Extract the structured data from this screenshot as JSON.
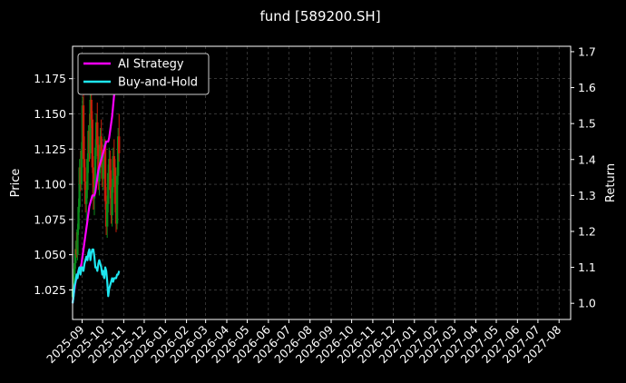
{
  "chart_data": {
    "type": "line",
    "title": "fund [589200.SH]",
    "xlabel": "",
    "ylabel_left": "Price",
    "ylabel_right": "Return",
    "x_tick_labels": [
      "2025-09",
      "2025-10",
      "2025-11",
      "2025-12",
      "2026-01",
      "2026-02",
      "2026-03",
      "2026-04",
      "2026-05",
      "2026-06",
      "2026-07",
      "2026-08",
      "2026-09",
      "2026-10",
      "2026-11",
      "2026-12",
      "2027-01",
      "2027-02",
      "2027-03",
      "2027-04",
      "2027-05",
      "2027-06",
      "2027-07",
      "2027-08"
    ],
    "xlim": [
      "2025-08-18",
      "2027-08-18"
    ],
    "y_left": {
      "lim": [
        1.004,
        1.198
      ],
      "ticks": [
        1.025,
        1.05,
        1.075,
        1.1,
        1.125,
        1.15,
        1.175
      ],
      "tick_labels": [
        "1.025",
        "1.050",
        "1.075",
        "1.100",
        "1.125",
        "1.150",
        "1.175"
      ]
    },
    "y_right": {
      "lim": [
        0.955,
        1.715
      ],
      "ticks": [
        1.0,
        1.1,
        1.2,
        1.3,
        1.4,
        1.5,
        1.6,
        1.7
      ],
      "tick_labels": [
        "1.0",
        "1.1",
        "1.2",
        "1.3",
        "1.4",
        "1.5",
        "1.6",
        "1.7"
      ]
    },
    "grid": true,
    "legend_position": "top-left",
    "colors": {
      "background": "#000000",
      "ai": "#ff00ff",
      "bh": "#1ee6f0",
      "up": "#0a8a1a",
      "down": "#c81e0a",
      "grid": "#555555",
      "axis": "#ffffff"
    },
    "candles": {
      "start_date": "2025-08-18",
      "step_days": 1.45,
      "ohlc": [
        [
          1.02,
          1.028,
          1.018,
          1.026
        ],
        [
          1.026,
          1.04,
          1.022,
          1.036
        ],
        [
          1.036,
          1.05,
          1.03,
          1.044
        ],
        [
          1.044,
          1.06,
          1.04,
          1.054
        ],
        [
          1.054,
          1.066,
          1.048,
          1.05
        ],
        [
          1.05,
          1.072,
          1.046,
          1.068
        ],
        [
          1.068,
          1.09,
          1.064,
          1.084
        ],
        [
          1.084,
          1.118,
          1.08,
          1.112
        ],
        [
          1.112,
          1.124,
          1.095,
          1.1
        ],
        [
          1.1,
          1.13,
          1.096,
          1.124
        ],
        [
          1.124,
          1.162,
          1.118,
          1.156
        ],
        [
          1.156,
          1.166,
          1.112,
          1.118
        ],
        [
          1.118,
          1.134,
          1.096,
          1.102
        ],
        [
          1.102,
          1.112,
          1.08,
          1.086
        ],
        [
          1.086,
          1.102,
          1.074,
          1.096
        ],
        [
          1.096,
          1.122,
          1.09,
          1.118
        ],
        [
          1.118,
          1.142,
          1.108,
          1.138
        ],
        [
          1.138,
          1.15,
          1.116,
          1.122
        ],
        [
          1.122,
          1.168,
          1.118,
          1.16
        ],
        [
          1.16,
          1.176,
          1.14,
          1.146
        ],
        [
          1.146,
          1.152,
          1.108,
          1.112
        ],
        [
          1.112,
          1.12,
          1.082,
          1.09
        ],
        [
          1.09,
          1.104,
          1.078,
          1.098
        ],
        [
          1.098,
          1.132,
          1.094,
          1.126
        ],
        [
          1.126,
          1.15,
          1.118,
          1.144
        ],
        [
          1.144,
          1.158,
          1.12,
          1.128
        ],
        [
          1.128,
          1.134,
          1.096,
          1.102
        ],
        [
          1.102,
          1.118,
          1.092,
          1.112
        ],
        [
          1.112,
          1.14,
          1.108,
          1.134
        ],
        [
          1.134,
          1.146,
          1.12,
          1.124
        ],
        [
          1.124,
          1.13,
          1.098,
          1.104
        ],
        [
          1.104,
          1.12,
          1.096,
          1.116
        ],
        [
          1.116,
          1.134,
          1.108,
          1.128
        ],
        [
          1.128,
          1.132,
          1.082,
          1.088
        ],
        [
          1.088,
          1.098,
          1.064,
          1.07
        ],
        [
          1.07,
          1.092,
          1.062,
          1.086
        ],
        [
          1.086,
          1.114,
          1.08,
          1.108
        ],
        [
          1.108,
          1.126,
          1.1,
          1.118
        ],
        [
          1.118,
          1.124,
          1.09,
          1.096
        ],
        [
          1.096,
          1.11,
          1.072,
          1.078
        ],
        [
          1.078,
          1.104,
          1.07,
          1.098
        ],
        [
          1.098,
          1.126,
          1.094,
          1.12
        ],
        [
          1.12,
          1.132,
          1.106,
          1.112
        ],
        [
          1.112,
          1.118,
          1.08,
          1.086
        ],
        [
          1.086,
          1.1,
          1.066,
          1.072
        ],
        [
          1.072,
          1.112,
          1.068,
          1.106
        ],
        [
          1.106,
          1.14,
          1.1,
          1.134
        ],
        [
          1.134,
          1.15,
          1.116,
          1.122
        ]
      ]
    },
    "series": [
      {
        "name": "AI Strategy",
        "start_date": "2025-08-18",
        "step_days": 1.45,
        "values": [
          1.0,
          1.02,
          1.04,
          1.06,
          1.07,
          1.08,
          1.09,
          1.1,
          1.1,
          1.11,
          1.13,
          1.15,
          1.17,
          1.19,
          1.21,
          1.23,
          1.25,
          1.27,
          1.28,
          1.29,
          1.3,
          1.3,
          1.3,
          1.31,
          1.33,
          1.35,
          1.37,
          1.38,
          1.39,
          1.4,
          1.41,
          1.42,
          1.43,
          1.44,
          1.45,
          1.45,
          1.45,
          1.46,
          1.48,
          1.5,
          1.52,
          1.55,
          1.58,
          1.6,
          1.61,
          1.63,
          1.65,
          1.66
        ]
      },
      {
        "name": "Buy-and-Hold",
        "start_date": "2025-08-18",
        "step_days": 1.45,
        "values": [
          1.0,
          1.02,
          1.05,
          1.06,
          1.08,
          1.07,
          1.09,
          1.1,
          1.08,
          1.1,
          1.1,
          1.09,
          1.11,
          1.12,
          1.13,
          1.12,
          1.14,
          1.15,
          1.12,
          1.14,
          1.15,
          1.15,
          1.13,
          1.1,
          1.1,
          1.09,
          1.11,
          1.12,
          1.11,
          1.1,
          1.08,
          1.09,
          1.07,
          1.1,
          1.09,
          1.06,
          1.02,
          1.04,
          1.05,
          1.06,
          1.07,
          1.06,
          1.07,
          1.07,
          1.07,
          1.08,
          1.08,
          1.09
        ]
      }
    ]
  }
}
